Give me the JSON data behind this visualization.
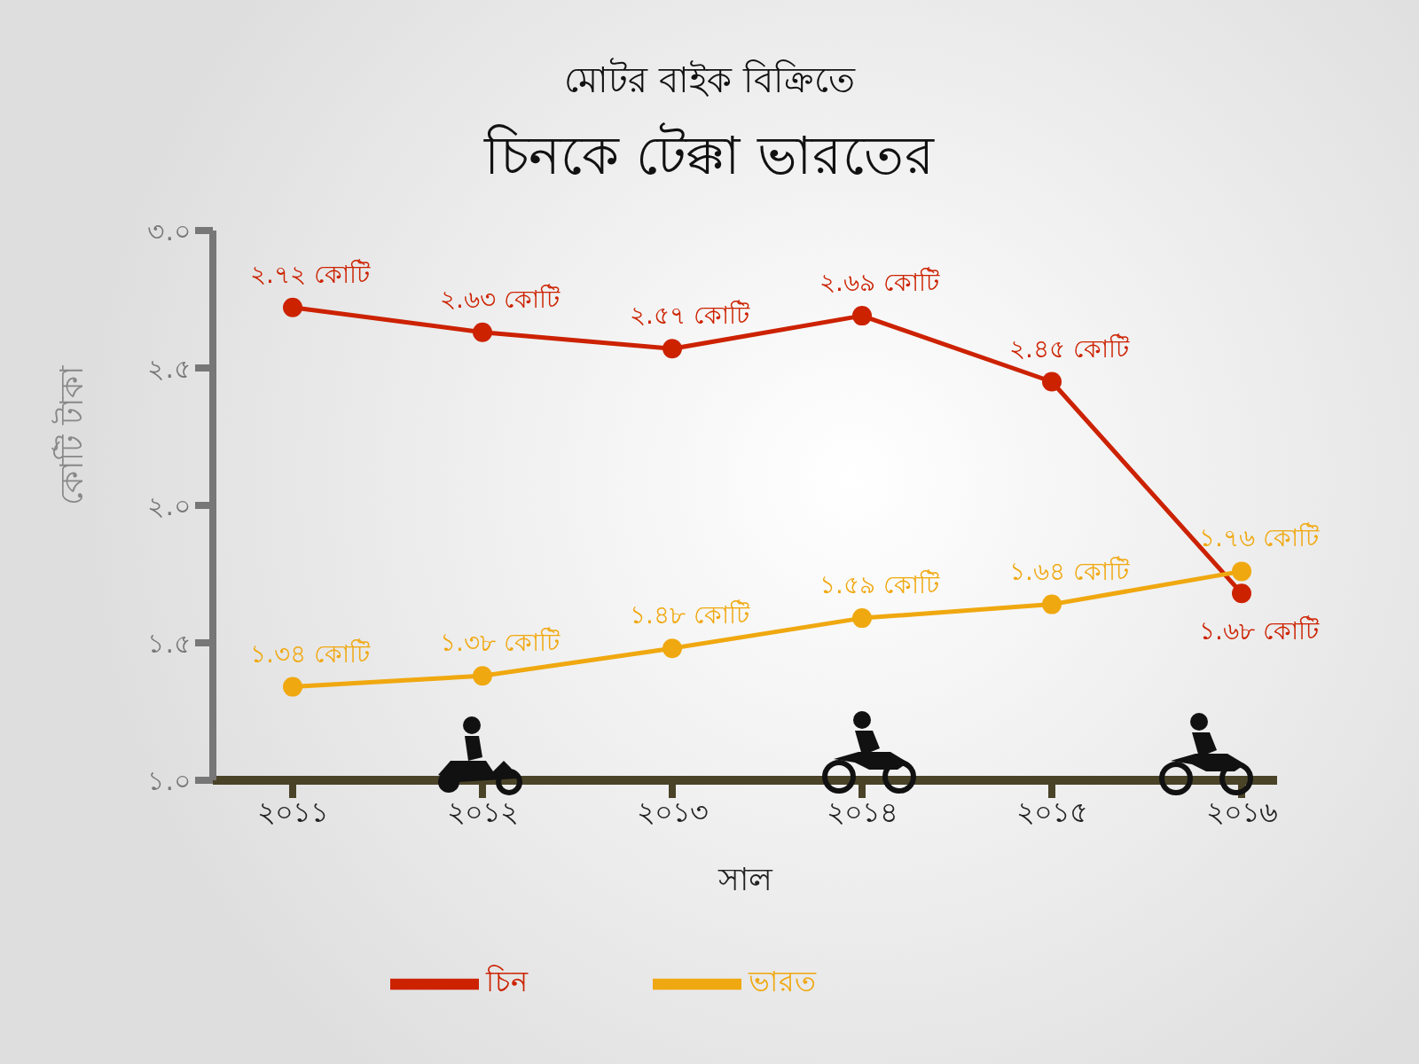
{
  "chart_data": {
    "type": "line",
    "subtitle": "মোটর বাইক বিক্রিতে",
    "title": "চিনকে টেক্কা ভারতের",
    "xlabel": "সাল",
    "ylabel": "কোটি টাকা",
    "categories": [
      "২০১১",
      "২০১২",
      "২০১৩",
      "২০১৪",
      "২০১৫",
      "২০১৬"
    ],
    "series": [
      {
        "name": "চিন",
        "color": "#cc2200",
        "values": [
          2.72,
          2.63,
          2.57,
          2.69,
          2.45,
          1.68
        ],
        "value_labels": [
          "২.৭২ কোটি",
          "২.৬৩ কোটি",
          "২.৫৭ কোটি",
          "২.৬৯ কোটি",
          "২.৪৫ কোটি",
          "১.৬৮ কোটি"
        ]
      },
      {
        "name": "ভারত",
        "color": "#f0a810",
        "values": [
          1.34,
          1.38,
          1.48,
          1.59,
          1.64,
          1.76
        ],
        "value_labels": [
          "১.৩৪ কোটি",
          "১.৩৮ কোটি",
          "১.৪৮ কোটি",
          "১.৫৯ কোটি",
          "১.৬৪ কোটি",
          "১.৭৬ কোটি"
        ]
      }
    ],
    "ylim": [
      1,
      3
    ],
    "yticks": [
      {
        "value": 1,
        "label": "১.০"
      },
      {
        "value": 1.5,
        "label": "১.৫"
      },
      {
        "value": 2,
        "label": "২.০"
      },
      {
        "value": 2.5,
        "label": "২.৫"
      },
      {
        "value": 3,
        "label": "৩.০"
      }
    ],
    "grid": false,
    "legend": "bottom",
    "marker": "circle",
    "line_style": "solid"
  }
}
